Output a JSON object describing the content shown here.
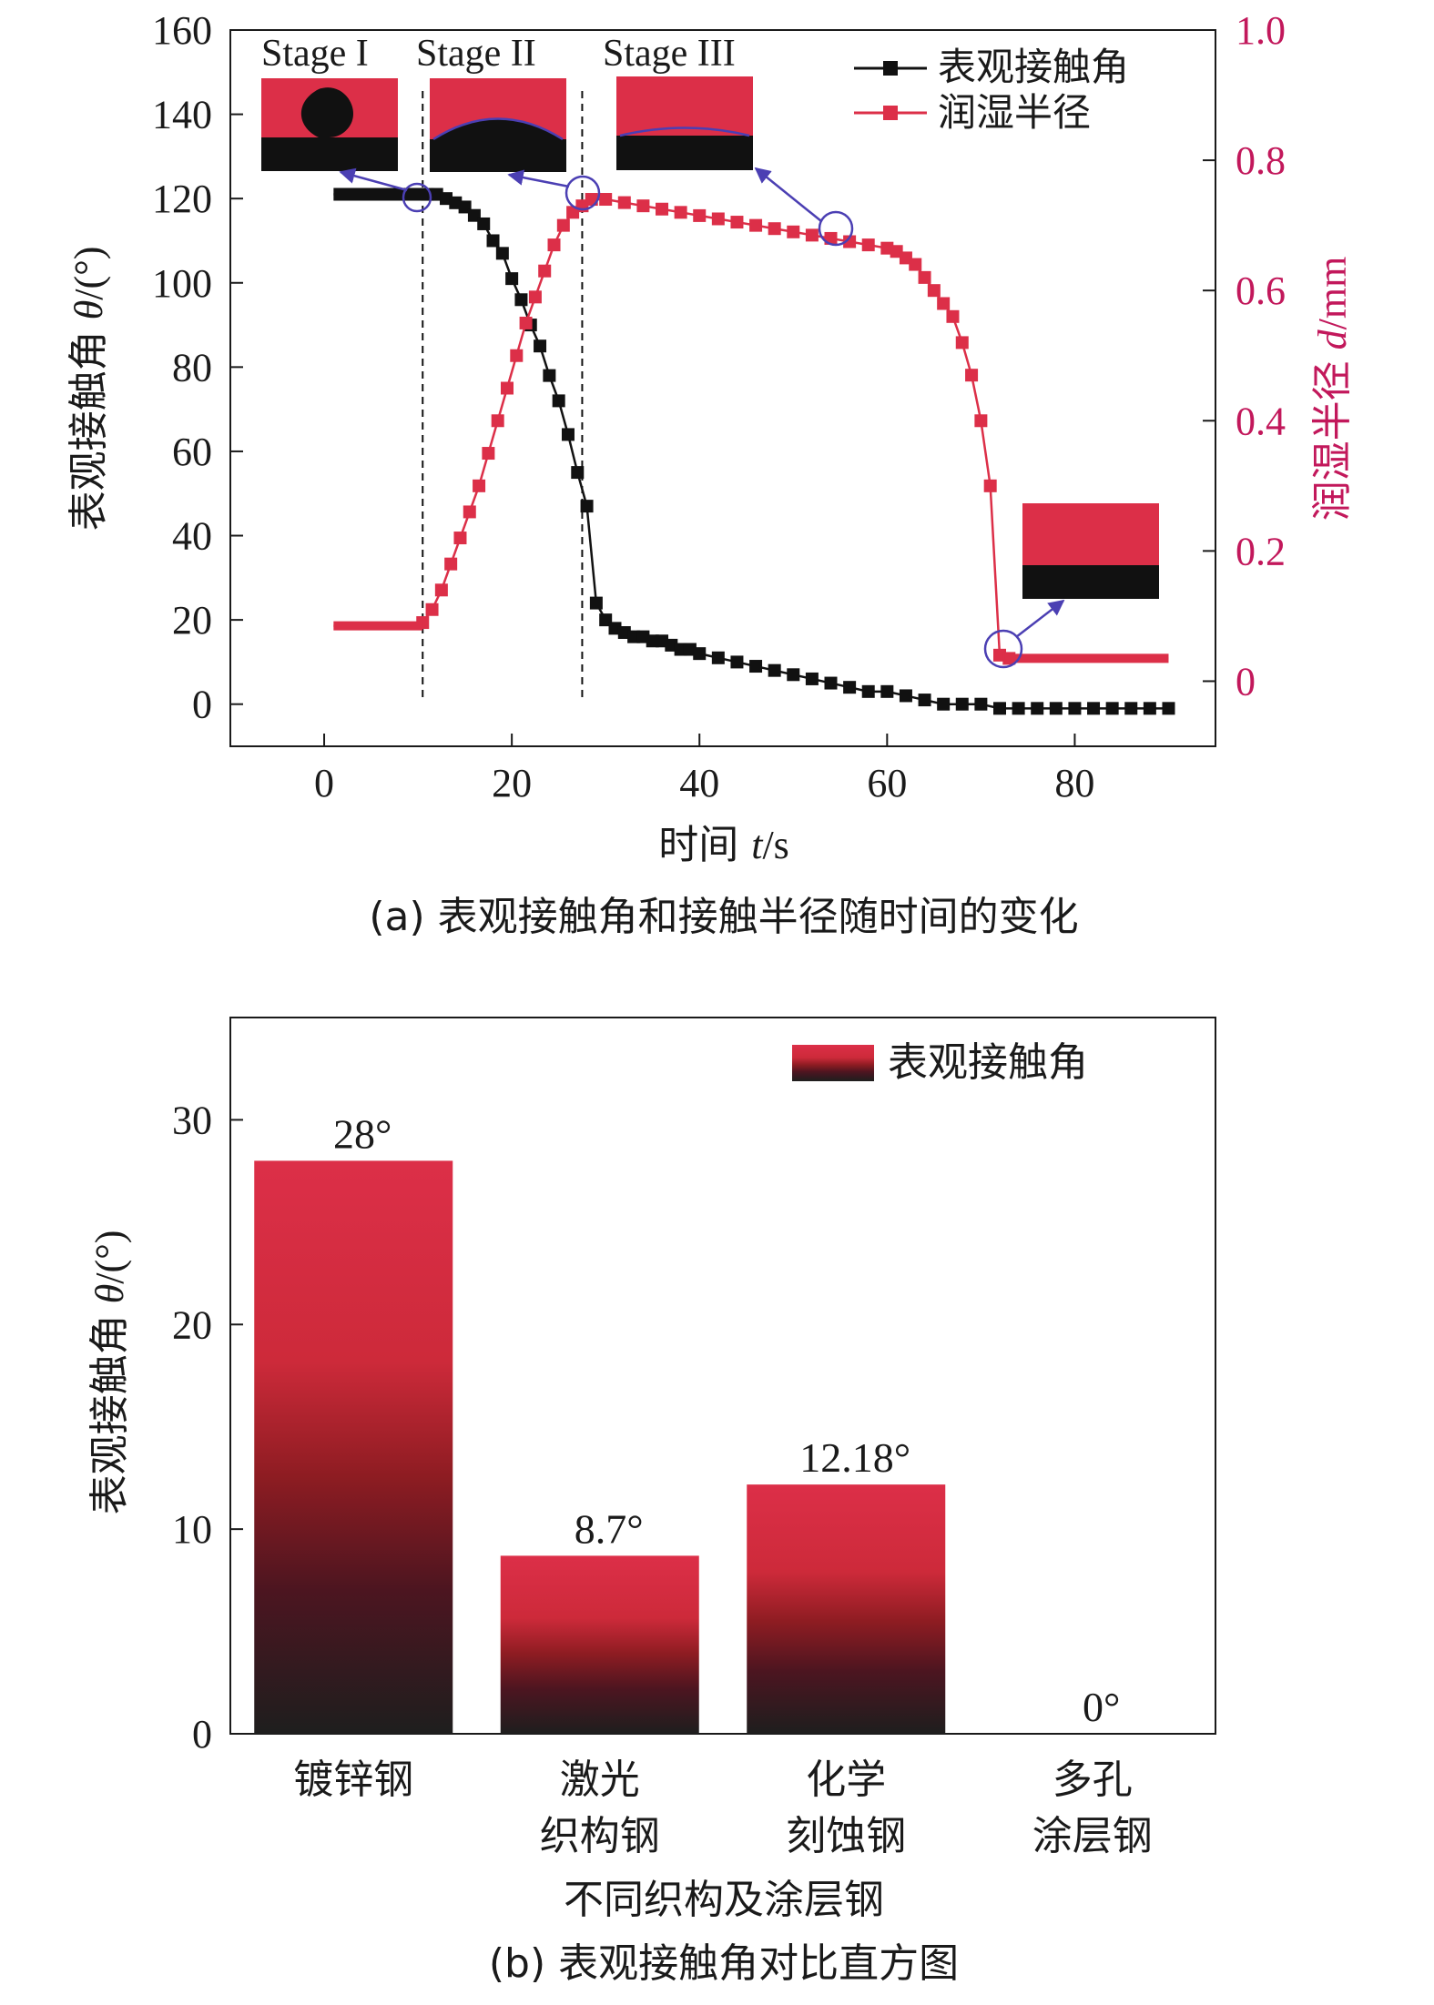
{
  "chart_data": [
    {
      "id": "a",
      "type": "line",
      "caption": "(a) 表观接触角和接触半径随时间的变化",
      "xlabel_main": "时间",
      "xlabel_var": "t",
      "xlabel_unit": "/s",
      "ylabel_main": "表观接触角",
      "ylabel_var": "θ",
      "ylabel_unit": "/(°)",
      "y2label_main": "润湿半径",
      "y2label_var": "d",
      "y2label_unit": "/mm",
      "xlim": [
        -10,
        95
      ],
      "ylim": [
        -10,
        160
      ],
      "y2lim": [
        -0.1,
        1.0
      ],
      "x_ticks": [
        "0",
        "20",
        "40",
        "60",
        "80"
      ],
      "y_ticks": [
        "0",
        "20",
        "40",
        "60",
        "80",
        "100",
        "120",
        "140",
        "160"
      ],
      "y2_ticks": [
        "0",
        "0.2",
        "0.4",
        "0.6",
        "0.8",
        "1.0"
      ],
      "stage_labels": [
        "Stage I",
        "Stage II",
        "Stage III"
      ],
      "stage_dividers_x": [
        10.5,
        27.5
      ],
      "grid": false,
      "legend_position": "top-right",
      "colors": {
        "contact_angle": "#111111",
        "wetting_radius": "#dc2f48",
        "axis2": "#c2185b",
        "highlight": "#4b3fb3",
        "drop_red": "#dc2f48"
      },
      "series": [
        {
          "name": "表观接触角",
          "axis": "left",
          "marker": "square",
          "x": [
            1,
            2,
            3,
            4,
            5,
            6,
            7,
            8,
            9,
            10,
            11,
            12,
            13,
            14,
            15,
            16,
            17,
            18,
            19,
            20,
            21,
            22,
            23,
            24,
            25,
            26,
            27,
            28,
            29,
            30,
            31,
            32,
            33,
            34,
            35,
            36,
            37,
            38,
            39,
            40,
            42,
            44,
            46,
            48,
            50,
            52,
            54,
            56,
            58,
            60,
            62,
            64,
            66,
            68,
            70,
            72,
            74,
            76,
            78,
            80,
            82,
            84,
            86,
            88,
            90
          ],
          "y": [
            121,
            121,
            121,
            121,
            121,
            121,
            121,
            121,
            121,
            121,
            121,
            121,
            120,
            119,
            118,
            116,
            114,
            110,
            107,
            101,
            96,
            90,
            85,
            78,
            72,
            64,
            55,
            47,
            24,
            20,
            18,
            17,
            16,
            16,
            15,
            15,
            14,
            13,
            13,
            12,
            11,
            10,
            9,
            8,
            7,
            6,
            5,
            4,
            3,
            3,
            2,
            1,
            0,
            0,
            0,
            -1,
            -1,
            -1,
            -1,
            -1,
            -1,
            -1,
            -1,
            -1,
            -1
          ]
        },
        {
          "name": "润湿半径",
          "axis": "right",
          "marker": "square",
          "x": [
            1,
            2,
            3,
            4,
            5,
            6,
            7,
            8,
            9,
            10,
            10.5,
            11.5,
            12.5,
            13.5,
            14.5,
            15.5,
            16.5,
            17.5,
            18.5,
            19.5,
            20.5,
            21.5,
            22.5,
            23.5,
            24.5,
            25.5,
            26.5,
            27.5,
            28.5,
            30,
            32,
            34,
            36,
            38,
            40,
            42,
            44,
            46,
            48,
            50,
            52,
            54,
            56,
            58,
            60,
            61,
            62,
            63,
            64,
            65,
            66,
            67,
            68,
            69,
            70,
            71,
            72,
            73,
            75,
            80,
            85,
            90
          ],
          "y": [
            0.085,
            0.085,
            0.085,
            0.085,
            0.085,
            0.085,
            0.085,
            0.085,
            0.085,
            0.085,
            0.09,
            0.11,
            0.14,
            0.18,
            0.22,
            0.26,
            0.3,
            0.35,
            0.4,
            0.45,
            0.5,
            0.55,
            0.59,
            0.63,
            0.67,
            0.7,
            0.72,
            0.73,
            0.74,
            0.74,
            0.735,
            0.73,
            0.725,
            0.72,
            0.715,
            0.71,
            0.705,
            0.7,
            0.695,
            0.69,
            0.685,
            0.68,
            0.675,
            0.67,
            0.665,
            0.66,
            0.65,
            0.64,
            0.62,
            0.6,
            0.58,
            0.56,
            0.52,
            0.47,
            0.4,
            0.3,
            0.04,
            0.035,
            0.035,
            0.035,
            0.035,
            0.035
          ]
        }
      ]
    },
    {
      "id": "b",
      "type": "bar",
      "caption": "(b) 表观接触角对比直方图",
      "xlabel": "不同织构及涂层钢",
      "ylabel_main": "表观接触角",
      "ylabel_var": "θ",
      "ylabel_unit": "/(°)",
      "ylim": [
        0,
        35
      ],
      "y_ticks": [
        "0",
        "10",
        "20",
        "30"
      ],
      "grid": false,
      "legend_position": "top-right",
      "legend": [
        "表观接触角"
      ],
      "categories": [
        [
          "镀锌钢"
        ],
        [
          "激光",
          "织构钢"
        ],
        [
          "化学",
          "刻蚀钢"
        ],
        [
          "多孔",
          "涂层钢"
        ]
      ],
      "values": [
        28,
        8.7,
        12.18,
        0
      ],
      "data_labels": [
        "28°",
        "8.7°",
        "12.18°",
        "0°"
      ],
      "colors": {
        "bar_top": "#dc2f48",
        "bar_bottom": "#1e1e1e"
      }
    }
  ]
}
